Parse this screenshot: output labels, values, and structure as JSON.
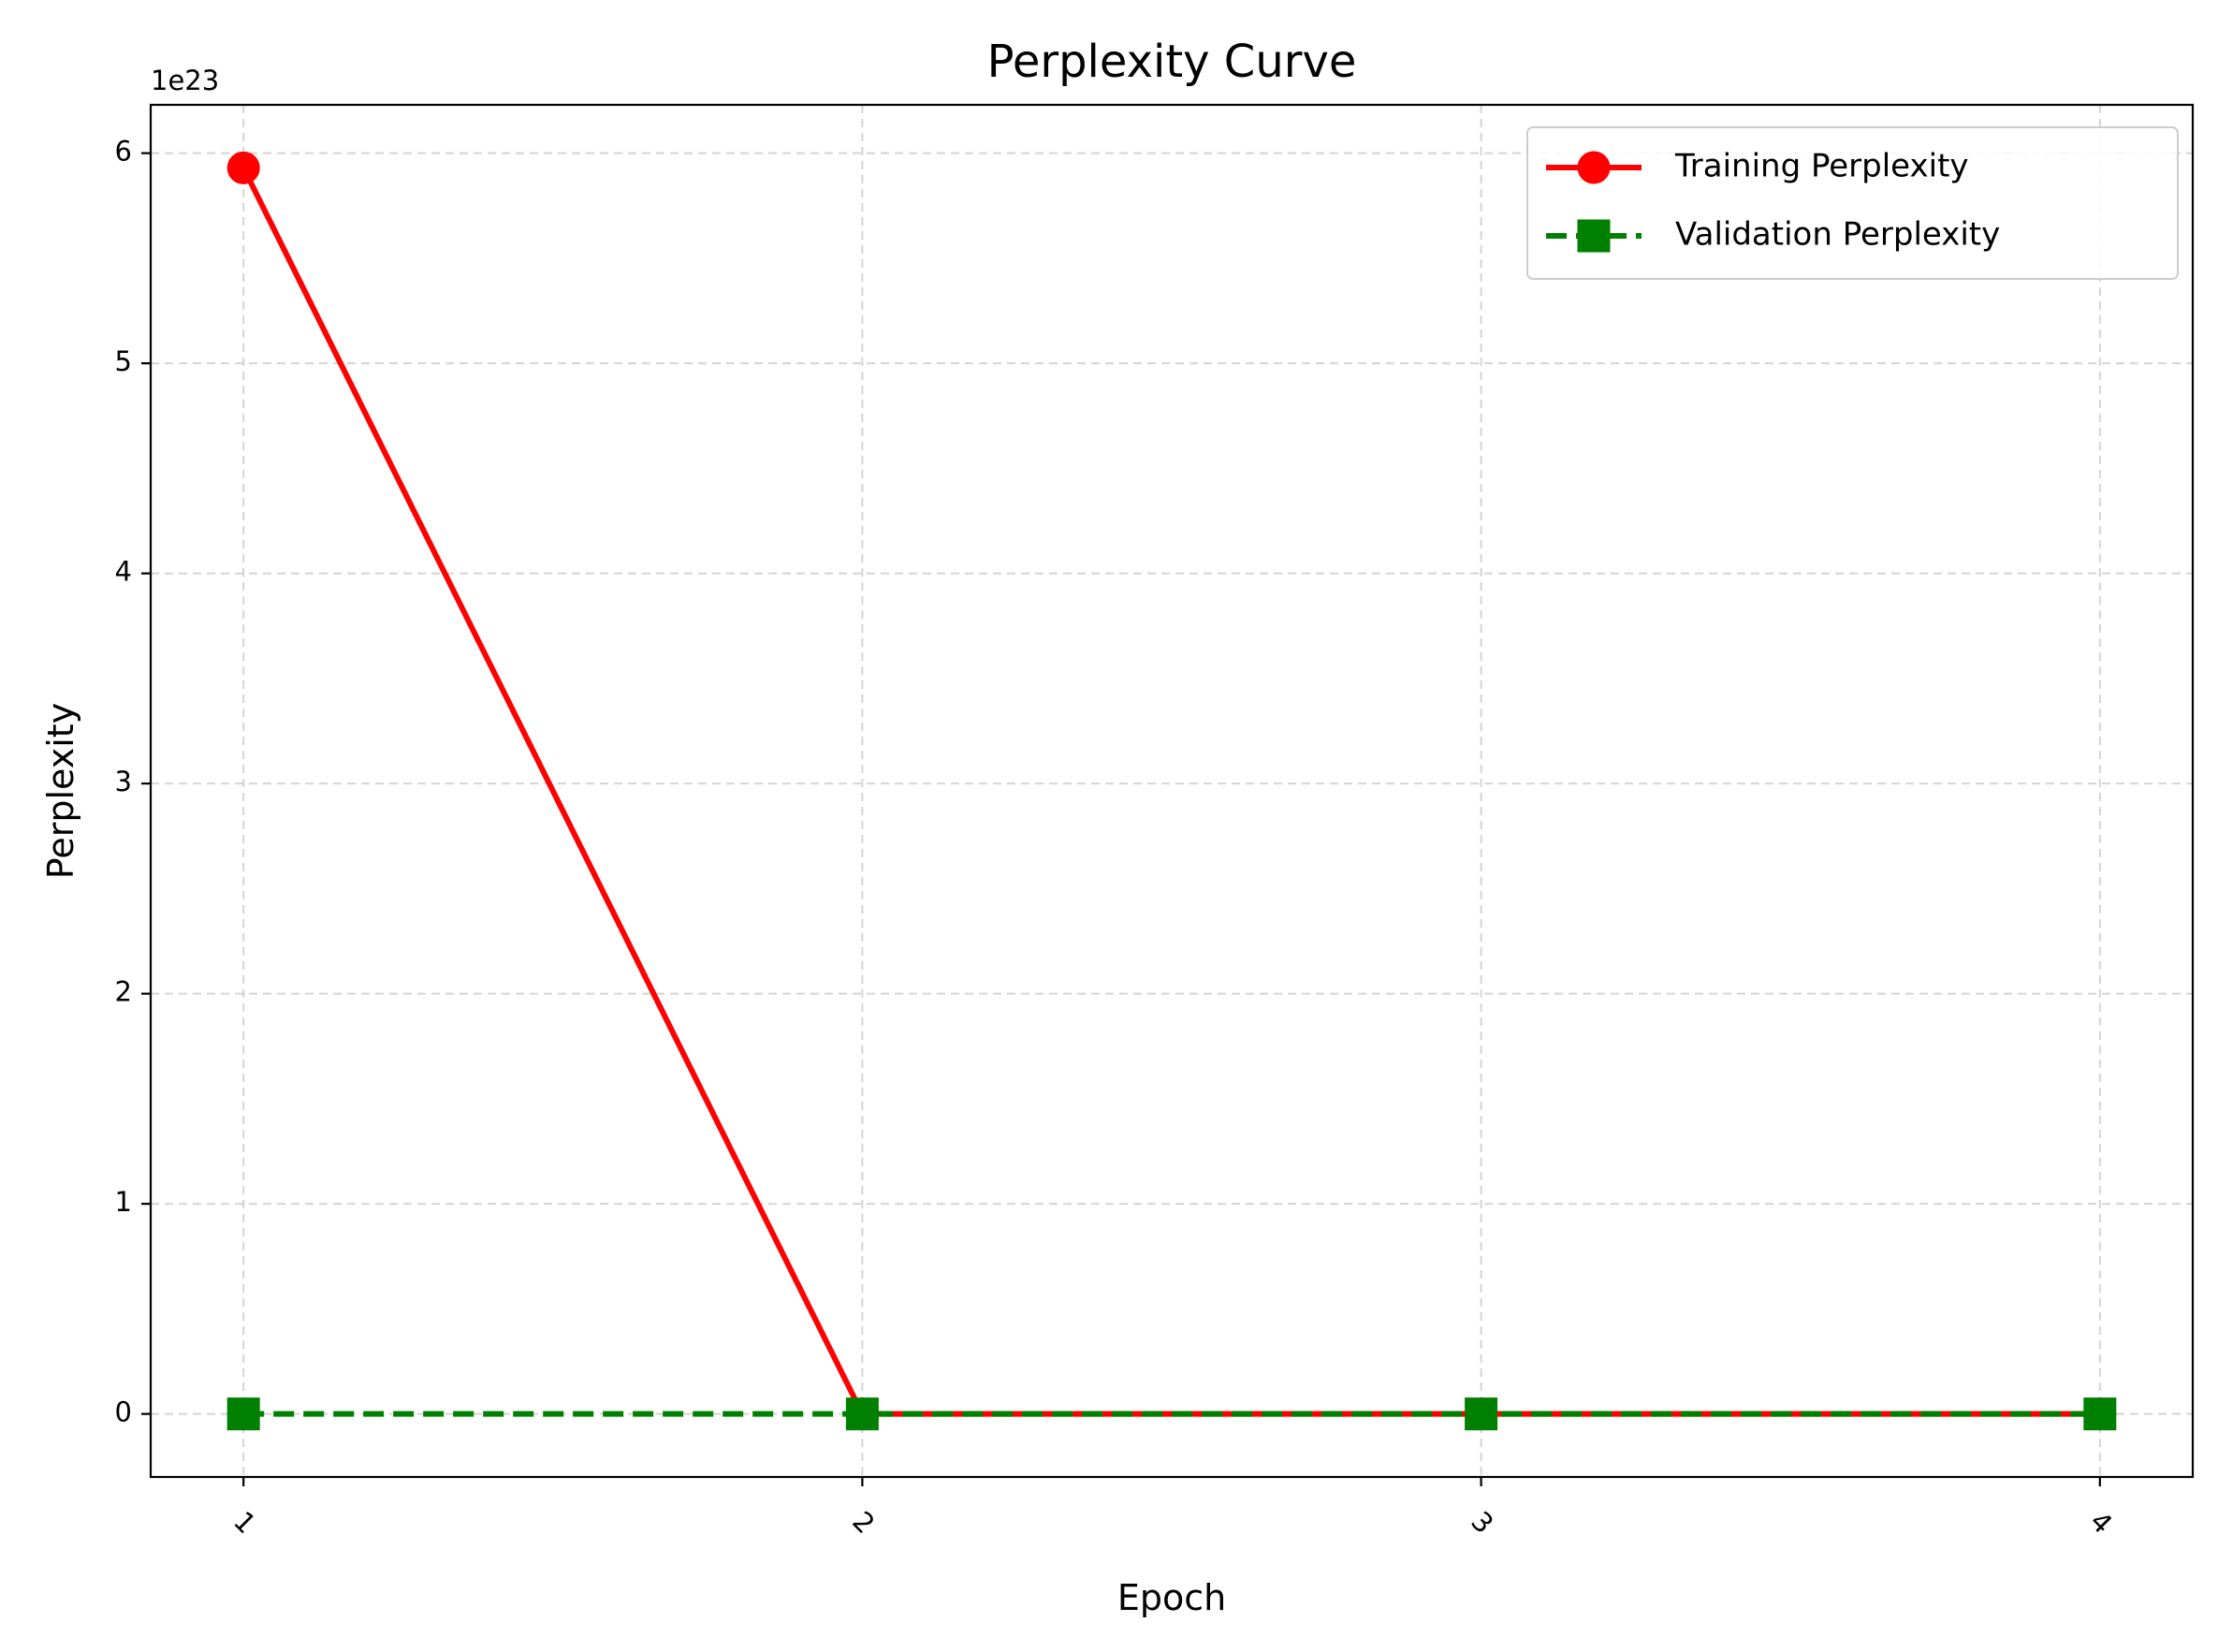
{
  "chart_data": {
    "type": "line",
    "title": "Perplexity Curve",
    "xlabel": "Epoch",
    "ylabel": "Perplexity",
    "y_offset_text": "1e23",
    "x": [
      1,
      2,
      3,
      4
    ],
    "xticks": [
      "1",
      "2",
      "3",
      "4"
    ],
    "xtick_rotation_deg": 45,
    "yticks": [
      0,
      1,
      2,
      3,
      4,
      5,
      6
    ],
    "ytick_labels": [
      "0",
      "1",
      "2",
      "3",
      "4",
      "5",
      "6"
    ],
    "xlim": [
      0.85,
      4.15
    ],
    "ylim": [
      -0.3,
      6.23
    ],
    "y_unit_scale": "1e23",
    "grid": true,
    "legend_position": "top-right",
    "series": [
      {
        "name": "Training Perplexity",
        "values": [
          5.93,
          0,
          0,
          0
        ],
        "color": "#ff0000",
        "line_style": "solid",
        "marker": "circle"
      },
      {
        "name": "Validation Perplexity",
        "values": [
          0,
          0,
          0,
          0
        ],
        "color": "#008000",
        "line_style": "dashed",
        "marker": "square"
      }
    ]
  }
}
